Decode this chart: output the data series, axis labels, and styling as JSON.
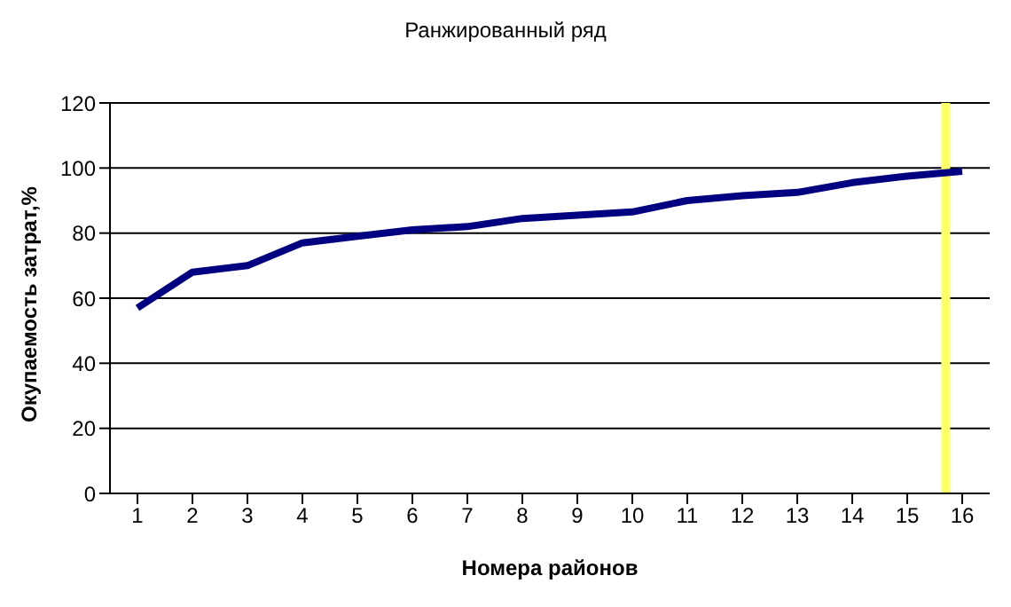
{
  "chart_data": {
    "type": "line",
    "title": "Ранжированный ряд",
    "xlabel": "Номера районов",
    "ylabel": "Окупаемость затрат,%",
    "x": [
      1,
      2,
      3,
      4,
      5,
      6,
      7,
      8,
      9,
      10,
      11,
      12,
      13,
      14,
      15,
      16
    ],
    "xlim": [
      0.5,
      16.5
    ],
    "xticks": [
      1,
      2,
      3,
      4,
      5,
      6,
      7,
      8,
      9,
      10,
      11,
      12,
      13,
      14,
      15,
      16
    ],
    "series": [
      {
        "color": "#000080",
        "values": [
          57,
          68,
          70,
          77,
          79,
          81,
          82,
          84.5,
          85.5,
          86.5,
          90,
          91.5,
          92.5,
          95.5,
          97.5,
          99
        ]
      }
    ],
    "ylim": [
      0,
      120
    ],
    "yticks": [
      0,
      20,
      40,
      60,
      80,
      100,
      120
    ],
    "grid": "y",
    "legend": false,
    "marker": "none",
    "line_style": "solid",
    "ref_lines": [
      {
        "axis": "x",
        "value": 15.7,
        "color": "#ffff66"
      }
    ]
  }
}
